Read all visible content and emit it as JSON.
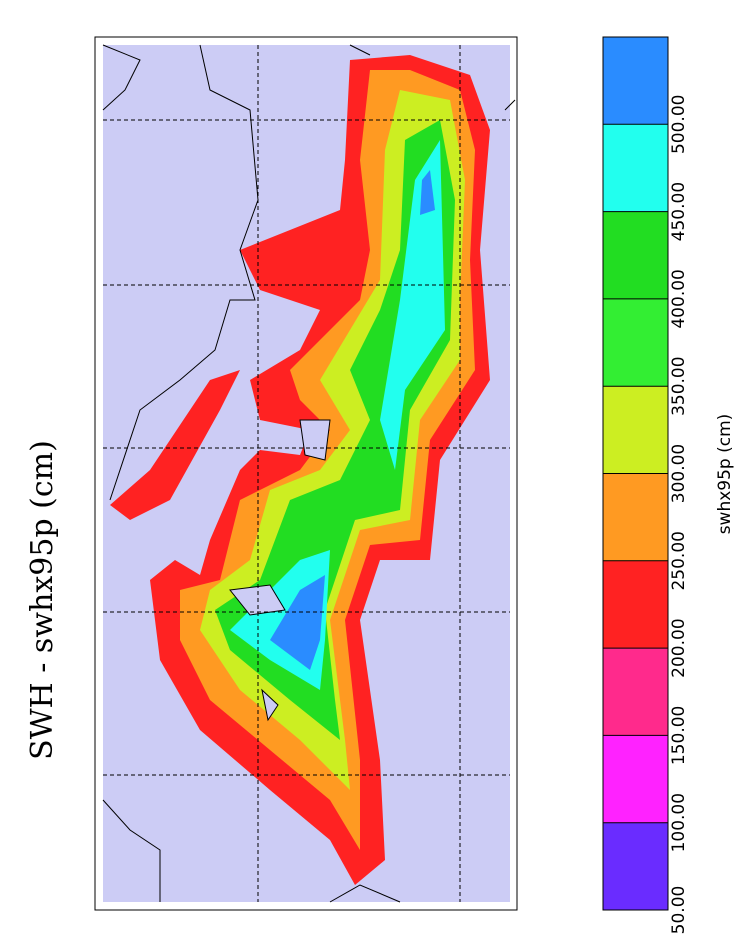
{
  "title": "SWH - swhx95p (cm)",
  "colorbar": {
    "label": "swhx95p (cm)",
    "lim": [
      50,
      550
    ],
    "ticks": [
      {
        "value": 50,
        "label": "50.00"
      },
      {
        "value": 100,
        "label": "100.00"
      },
      {
        "value": 150,
        "label": "150.00"
      },
      {
        "value": 200,
        "label": "200.00"
      },
      {
        "value": 250,
        "label": "250.00"
      },
      {
        "value": 300,
        "label": "300.00"
      },
      {
        "value": 350,
        "label": "350.00"
      },
      {
        "value": 400,
        "label": "400.00"
      },
      {
        "value": 450,
        "label": "450.00"
      },
      {
        "value": 500,
        "label": "500.00"
      }
    ],
    "colors": [
      "#6a2cff",
      "#ff22ff",
      "#ff2a8c",
      "#ff2222",
      "#ff9a22",
      "#ccee22",
      "#33ee33",
      "#22dd22",
      "#22ffee",
      "#2a8cff"
    ]
  }
}
